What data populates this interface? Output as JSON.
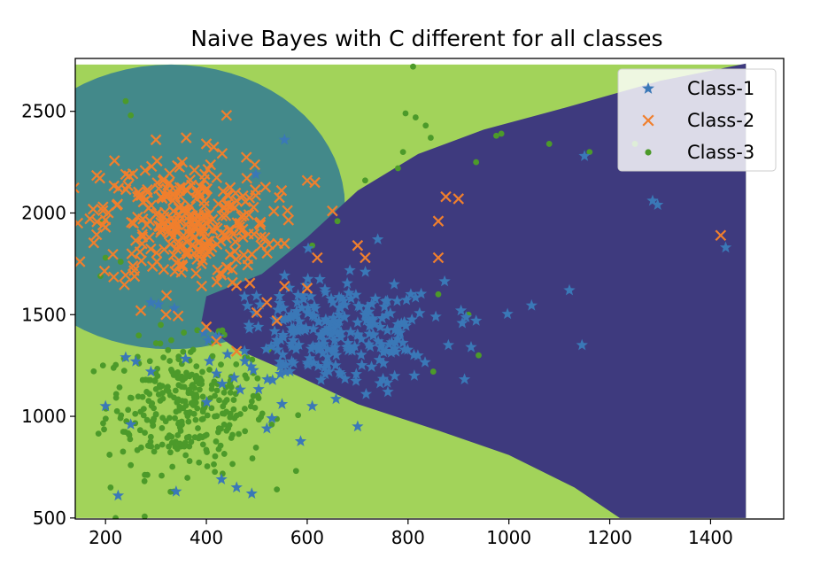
{
  "chart_data": {
    "type": "scatter",
    "title": "Naive Bayes with C different for all classes",
    "xlabel": "",
    "ylabel": "",
    "xlim": [
      140,
      1545
    ],
    "ylim": [
      495,
      2760
    ],
    "xticks": [
      200,
      400,
      600,
      800,
      1000,
      1200,
      1400
    ],
    "yticks": [
      500,
      1000,
      1500,
      2000,
      2500
    ],
    "legend_position": "top-right",
    "grid": false,
    "decision_regions": [
      {
        "name": "region-class-1",
        "color": "#3e3a7e"
      },
      {
        "name": "region-class-2",
        "color": "#43898a"
      },
      {
        "name": "region-class-3",
        "color": "#a2d35a"
      }
    ],
    "series": [
      {
        "name": "Class-1",
        "marker": "star",
        "color": "#3a78b7",
        "center": [
          650,
          1400
        ],
        "spread": [
          110,
          130
        ],
        "count": 260,
        "extra_points": [
          [
            555,
            2360
          ],
          [
            498,
            2190
          ],
          [
            1150,
            2280
          ],
          [
            1285,
            2060
          ],
          [
            1295,
            2040
          ],
          [
            1430,
            1830
          ],
          [
            1120,
            1620
          ],
          [
            1045,
            1545
          ],
          [
            905,
            1520
          ],
          [
            935,
            1470
          ],
          [
            740,
            1870
          ],
          [
            1145,
            1350
          ],
          [
            200,
            1050
          ],
          [
            225,
            610
          ],
          [
            340,
            630
          ],
          [
            250,
            960
          ],
          [
            290,
            1220
          ],
          [
            455,
            1190
          ],
          [
            460,
            650
          ],
          [
            430,
            690
          ],
          [
            490,
            620
          ],
          [
            520,
            940
          ],
          [
            530,
            990
          ],
          [
            700,
            950
          ],
          [
            760,
            1120
          ],
          [
            880,
            1350
          ],
          [
            925,
            1340
          ],
          [
            855,
            1490
          ],
          [
            780,
            1380
          ],
          [
            240,
            1290
          ],
          [
            260,
            1270
          ],
          [
            290,
            1560
          ],
          [
            305,
            1550
          ],
          [
            420,
            1210
          ],
          [
            550,
            1060
          ],
          [
            610,
            1050
          ]
        ]
      },
      {
        "name": "Class-2",
        "marker": "x",
        "color": "#f07f2d",
        "center": [
          360,
          1950
        ],
        "spread": [
          85,
          160
        ],
        "count": 300,
        "extra_points": [
          [
            440,
            2480
          ],
          [
            300,
            2360
          ],
          [
            360,
            2370
          ],
          [
            400,
            2340
          ],
          [
            240,
            2190
          ],
          [
            555,
            1850
          ],
          [
            600,
            2160
          ],
          [
            615,
            2150
          ],
          [
            650,
            2010
          ],
          [
            700,
            1840
          ],
          [
            715,
            1780
          ],
          [
            860,
            1960
          ],
          [
            875,
            2080
          ],
          [
            900,
            2070
          ],
          [
            860,
            1780
          ],
          [
            1420,
            1890
          ],
          [
            195,
            2030
          ],
          [
            200,
            1930
          ],
          [
            145,
            1950
          ],
          [
            460,
            1320
          ],
          [
            400,
            1440
          ],
          [
            420,
            1370
          ],
          [
            270,
            1520
          ],
          [
            320,
            1500
          ],
          [
            600,
            1630
          ],
          [
            620,
            1780
          ],
          [
            520,
            1560
          ],
          [
            555,
            1640
          ],
          [
            540,
            1470
          ],
          [
            500,
            1510
          ]
        ]
      },
      {
        "name": "Class-3",
        "marker": "dot",
        "color": "#4c9a2a",
        "center": [
          360,
          1050
        ],
        "spread": [
          80,
          160
        ],
        "count": 320,
        "extra_points": [
          [
            810,
            2720
          ],
          [
            795,
            2490
          ],
          [
            815,
            2470
          ],
          [
            835,
            2430
          ],
          [
            845,
            2370
          ],
          [
            790,
            2300
          ],
          [
            780,
            2220
          ],
          [
            715,
            2160
          ],
          [
            660,
            1960
          ],
          [
            610,
            1840
          ],
          [
            860,
            1600
          ],
          [
            935,
            2250
          ],
          [
            975,
            2380
          ],
          [
            985,
            2390
          ],
          [
            1080,
            2340
          ],
          [
            1160,
            2300
          ],
          [
            1250,
            2340
          ],
          [
            240,
            2550
          ],
          [
            250,
            2480
          ],
          [
            190,
            1950
          ],
          [
            200,
            1780
          ],
          [
            230,
            1760
          ],
          [
            850,
            1220
          ],
          [
            920,
            1500
          ],
          [
            940,
            1300
          ],
          [
            220,
            500
          ],
          [
            210,
            650
          ],
          [
            190,
            1690
          ]
        ]
      }
    ]
  }
}
